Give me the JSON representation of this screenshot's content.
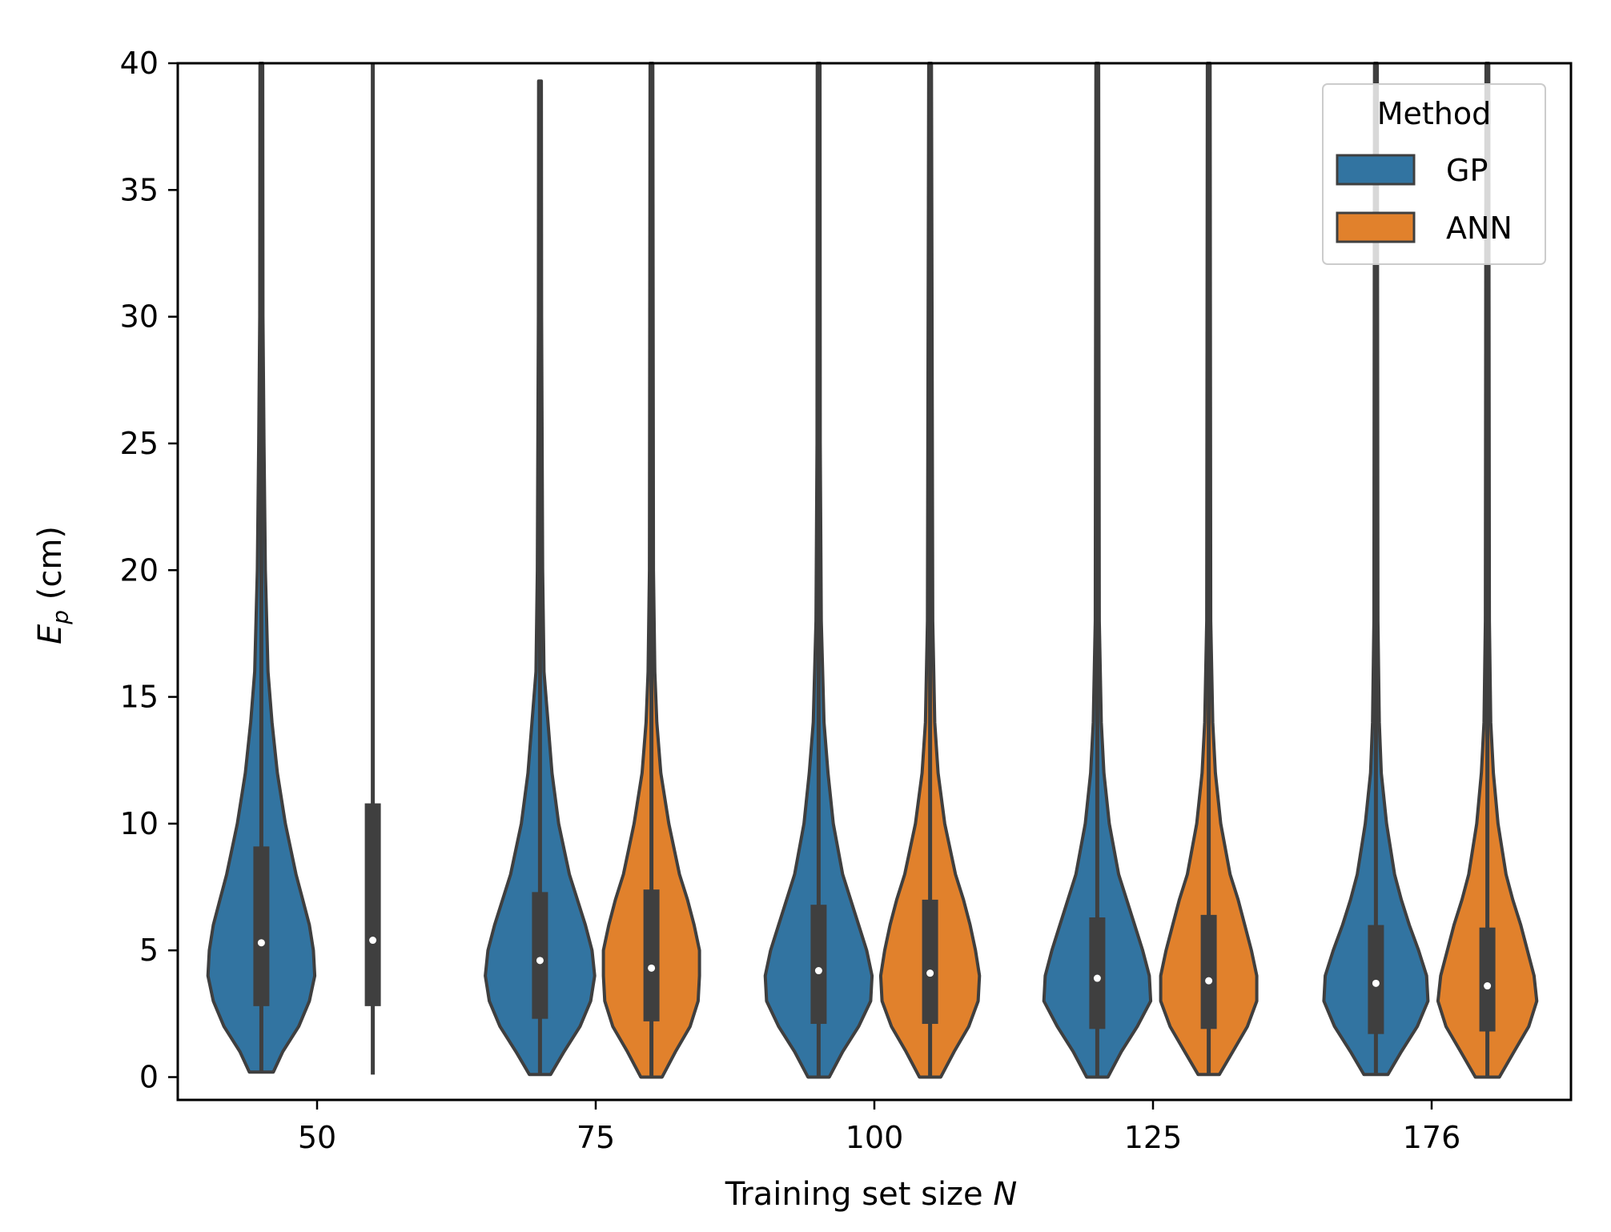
{
  "chart_data": {
    "type": "violin",
    "xlabel": "Training set size",
    "xlabel_var": "N",
    "ylabel_var": "E",
    "ylabel_sub": "p",
    "ylabel_unit": "(cm)",
    "ylim": [
      -0.9,
      40
    ],
    "yticks": [
      0,
      5,
      10,
      15,
      20,
      25,
      30,
      35,
      40
    ],
    "categories": [
      "50",
      "75",
      "100",
      "125",
      "176"
    ],
    "grid": false,
    "legend": {
      "title": "Method",
      "position": "top-right",
      "entries": [
        {
          "name": "GP",
          "color": "#3274a1"
        },
        {
          "name": "ANN",
          "color": "#e1812c"
        }
      ]
    },
    "series": [
      {
        "name": "GP",
        "color": "#3274a1",
        "violins": [
          {
            "category": "50",
            "min": 0.2,
            "max": 40,
            "q1": 2.8,
            "median": 5.3,
            "q3": 9.1,
            "profile": [
              [
                0.2,
                0.9
              ],
              [
                1.0,
                1.6
              ],
              [
                2.0,
                2.8
              ],
              [
                3.0,
                3.6
              ],
              [
                4.0,
                4.0
              ],
              [
                5.0,
                3.9
              ],
              [
                6.0,
                3.6
              ],
              [
                7.0,
                3.1
              ],
              [
                8.0,
                2.6
              ],
              [
                10.0,
                1.8
              ],
              [
                12.0,
                1.2
              ],
              [
                14.0,
                0.8
              ],
              [
                16.0,
                0.5
              ],
              [
                20.0,
                0.3
              ],
              [
                25.0,
                0.2
              ],
              [
                30.0,
                0.12
              ],
              [
                40.0,
                0.1
              ]
            ]
          },
          {
            "category": "75",
            "min": 0.1,
            "max": 39.3,
            "q1": 2.3,
            "median": 4.6,
            "q3": 7.3,
            "profile": [
              [
                0.1,
                0.8
              ],
              [
                1.0,
                1.8
              ],
              [
                2.0,
                3.0
              ],
              [
                3.0,
                3.8
              ],
              [
                4.0,
                4.1
              ],
              [
                5.0,
                3.9
              ],
              [
                6.0,
                3.4
              ],
              [
                7.0,
                2.8
              ],
              [
                8.0,
                2.2
              ],
              [
                10.0,
                1.4
              ],
              [
                12.0,
                0.9
              ],
              [
                14.0,
                0.6
              ],
              [
                16.0,
                0.3
              ],
              [
                20.0,
                0.2
              ],
              [
                30.0,
                0.12
              ],
              [
                39.3,
                0.1
              ]
            ]
          },
          {
            "category": "100",
            "min": 0.0,
            "max": 40,
            "q1": 2.1,
            "median": 4.2,
            "q3": 6.8,
            "profile": [
              [
                0.0,
                0.8
              ],
              [
                1.0,
                1.8
              ],
              [
                2.0,
                3.0
              ],
              [
                3.0,
                3.9
              ],
              [
                4.0,
                4.0
              ],
              [
                5.0,
                3.6
              ],
              [
                6.0,
                3.0
              ],
              [
                7.0,
                2.4
              ],
              [
                8.0,
                1.8
              ],
              [
                10.0,
                1.1
              ],
              [
                12.0,
                0.7
              ],
              [
                14.0,
                0.4
              ],
              [
                18.0,
                0.2
              ],
              [
                25.0,
                0.12
              ],
              [
                40.0,
                0.1
              ]
            ]
          },
          {
            "category": "125",
            "min": 0.0,
            "max": 40,
            "q1": 1.9,
            "median": 3.9,
            "q3": 6.3,
            "profile": [
              [
                0.0,
                0.8
              ],
              [
                1.0,
                1.8
              ],
              [
                2.0,
                3.0
              ],
              [
                3.0,
                4.0
              ],
              [
                4.0,
                3.9
              ],
              [
                5.0,
                3.4
              ],
              [
                6.0,
                2.8
              ],
              [
                7.0,
                2.2
              ],
              [
                8.0,
                1.6
              ],
              [
                10.0,
                0.9
              ],
              [
                12.0,
                0.5
              ],
              [
                14.0,
                0.3
              ],
              [
                18.0,
                0.15
              ],
              [
                40.0,
                0.1
              ]
            ]
          },
          {
            "category": "176",
            "min": 0.1,
            "max": 40,
            "q1": 1.7,
            "median": 3.7,
            "q3": 6.0,
            "profile": [
              [
                0.1,
                0.9
              ],
              [
                1.0,
                1.9
              ],
              [
                2.0,
                3.1
              ],
              [
                3.0,
                3.9
              ],
              [
                4.0,
                3.8
              ],
              [
                5.0,
                3.2
              ],
              [
                6.0,
                2.5
              ],
              [
                7.0,
                1.9
              ],
              [
                8.0,
                1.4
              ],
              [
                10.0,
                0.8
              ],
              [
                12.0,
                0.4
              ],
              [
                14.0,
                0.25
              ],
              [
                18.0,
                0.15
              ],
              [
                40.0,
                0.1
              ]
            ]
          }
        ]
      },
      {
        "name": "ANN",
        "color": "#e1812c",
        "violins": [
          {
            "category": "50",
            "min": 0.1,
            "max": 40,
            "q1": 2.8,
            "median": 5.4,
            "q3": 10.8,
            "profile": [
              [
                0.1,
                0.1
              ],
              [
                40.0,
                0.1
              ]
            ]
          },
          {
            "category": "75",
            "min": 0.0,
            "max": 40,
            "q1": 2.2,
            "median": 4.3,
            "q3": 7.4,
            "profile": [
              [
                0.0,
                0.8
              ],
              [
                1.0,
                1.8
              ],
              [
                2.0,
                2.9
              ],
              [
                3.0,
                3.5
              ],
              [
                4.0,
                3.6
              ],
              [
                5.0,
                3.6
              ],
              [
                6.0,
                3.2
              ],
              [
                7.0,
                2.7
              ],
              [
                8.0,
                2.1
              ],
              [
                10.0,
                1.3
              ],
              [
                12.0,
                0.7
              ],
              [
                14.0,
                0.4
              ],
              [
                16.0,
                0.25
              ],
              [
                20.0,
                0.15
              ],
              [
                40.0,
                0.1
              ]
            ]
          },
          {
            "category": "100",
            "min": 0.0,
            "max": 40,
            "q1": 2.1,
            "median": 4.1,
            "q3": 7.0,
            "profile": [
              [
                0.0,
                0.8
              ],
              [
                1.0,
                1.8
              ],
              [
                2.0,
                2.9
              ],
              [
                3.0,
                3.6
              ],
              [
                4.0,
                3.7
              ],
              [
                5.0,
                3.4
              ],
              [
                6.0,
                3.0
              ],
              [
                7.0,
                2.5
              ],
              [
                8.0,
                1.9
              ],
              [
                10.0,
                1.1
              ],
              [
                12.0,
                0.6
              ],
              [
                14.0,
                0.35
              ],
              [
                18.0,
                0.2
              ],
              [
                40.0,
                0.1
              ]
            ]
          },
          {
            "category": "125",
            "min": 0.1,
            "max": 40,
            "q1": 1.9,
            "median": 3.8,
            "q3": 6.4,
            "profile": [
              [
                0.1,
                0.8
              ],
              [
                1.0,
                1.8
              ],
              [
                2.0,
                2.9
              ],
              [
                3.0,
                3.6
              ],
              [
                4.0,
                3.6
              ],
              [
                5.0,
                3.2
              ],
              [
                6.0,
                2.7
              ],
              [
                7.0,
                2.2
              ],
              [
                8.0,
                1.6
              ],
              [
                10.0,
                0.9
              ],
              [
                12.0,
                0.5
              ],
              [
                14.0,
                0.3
              ],
              [
                18.0,
                0.15
              ],
              [
                40.0,
                0.1
              ]
            ]
          },
          {
            "category": "176",
            "min": 0.0,
            "max": 40,
            "q1": 1.8,
            "median": 3.6,
            "q3": 5.9,
            "profile": [
              [
                0.0,
                0.9
              ],
              [
                1.0,
                2.0
              ],
              [
                2.0,
                3.1
              ],
              [
                3.0,
                3.7
              ],
              [
                4.0,
                3.5
              ],
              [
                5.0,
                3.0
              ],
              [
                6.0,
                2.5
              ],
              [
                7.0,
                1.9
              ],
              [
                8.0,
                1.4
              ],
              [
                10.0,
                0.8
              ],
              [
                12.0,
                0.45
              ],
              [
                14.0,
                0.25
              ],
              [
                18.0,
                0.15
              ],
              [
                40.0,
                0.1
              ]
            ]
          }
        ]
      }
    ]
  }
}
